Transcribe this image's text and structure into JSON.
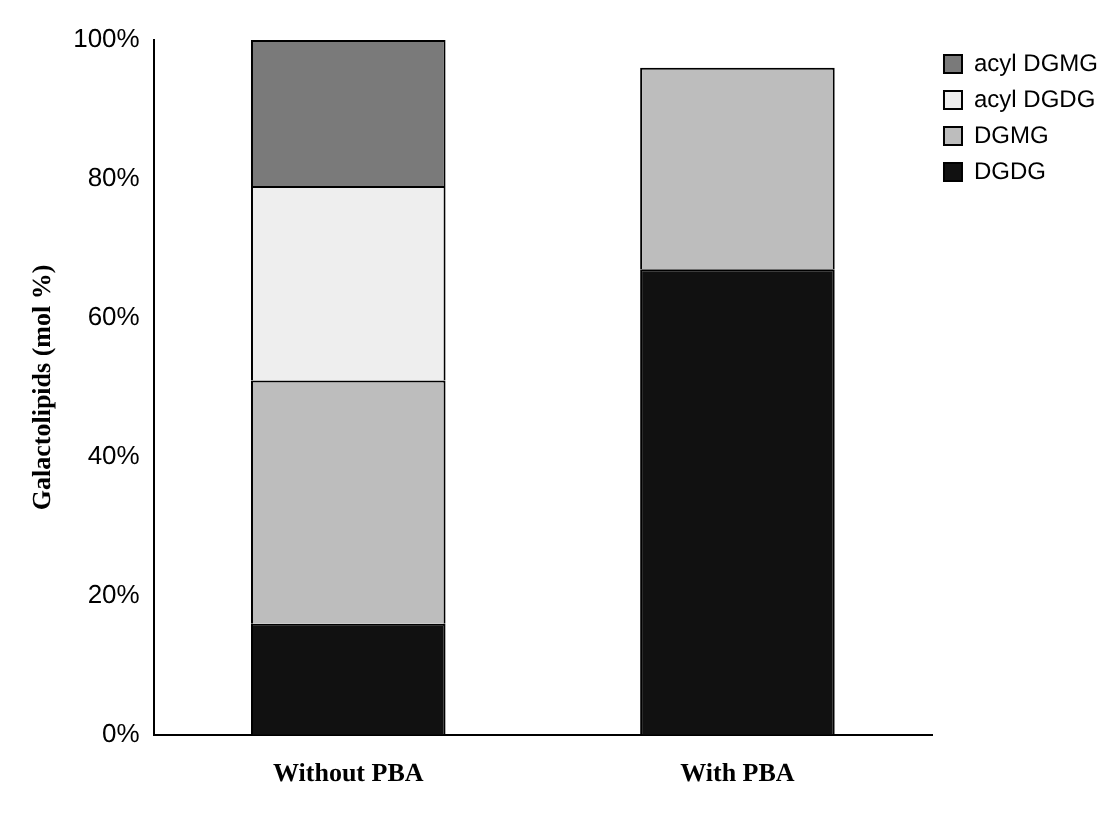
{
  "chart_data": {
    "type": "bar",
    "stacked": true,
    "ylabel": "Galactolipids (mol %)",
    "categories": [
      "Without PBA",
      "With PBA"
    ],
    "series": [
      {
        "name": "DGDG",
        "color": "#111111",
        "values": [
          16,
          67
        ]
      },
      {
        "name": "DGMG",
        "color": "#bdbdbd",
        "values": [
          35,
          29
        ]
      },
      {
        "name": "acyl DGDG",
        "color": "#eeeeee",
        "values": [
          28,
          0
        ]
      },
      {
        "name": "acyl DGMG",
        "color": "#7a7a7a",
        "values": [
          21,
          0
        ]
      }
    ],
    "ylim": [
      0,
      100
    ],
    "yticks": [
      {
        "value": 0,
        "label": "0%"
      },
      {
        "value": 20,
        "label": "20%"
      },
      {
        "value": 40,
        "label": "40%"
      },
      {
        "value": 60,
        "label": "60%"
      },
      {
        "value": 80,
        "label": "80%"
      },
      {
        "value": 100,
        "label": "100%"
      }
    ],
    "grid": false,
    "legend": "top right"
  }
}
